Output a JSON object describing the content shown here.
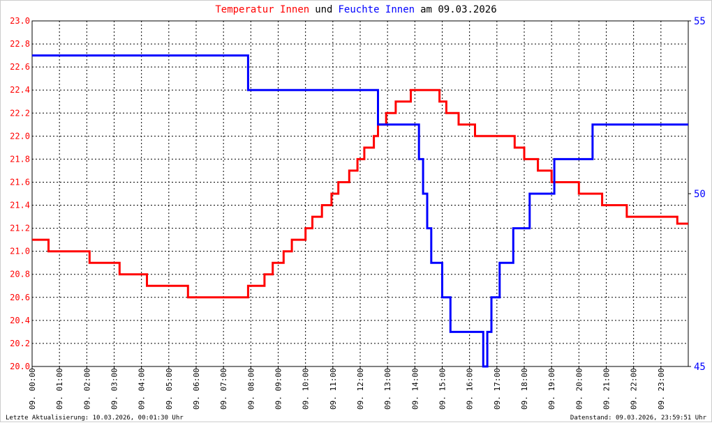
{
  "chart_data": {
    "type": "line",
    "title": [
      "Temperatur Innen",
      "und",
      "Feuchte Innen",
      "am 09.03.2026"
    ],
    "footer_left": "Letzte Aktualisierung: 10.03.2026, 00:01:30 Uhr",
    "footer_right": "Datenstand: 09.03.2026, 23:59:51 Uhr",
    "grid": true,
    "xlim": [
      0,
      24
    ],
    "xticks": [
      {
        "value": 0,
        "label": "09. 00:00"
      },
      {
        "value": 1,
        "label": "09. 01:00"
      },
      {
        "value": 2,
        "label": "09. 02:00"
      },
      {
        "value": 3,
        "label": "09. 03:00"
      },
      {
        "value": 4,
        "label": "09. 04:00"
      },
      {
        "value": 5,
        "label": "09. 05:00"
      },
      {
        "value": 6,
        "label": "09. 06:00"
      },
      {
        "value": 7,
        "label": "09. 07:00"
      },
      {
        "value": 8,
        "label": "09. 08:00"
      },
      {
        "value": 9,
        "label": "09. 09:00"
      },
      {
        "value": 10,
        "label": "09. 10:00"
      },
      {
        "value": 11,
        "label": "09. 11:00"
      },
      {
        "value": 12,
        "label": "09. 12:00"
      },
      {
        "value": 13,
        "label": "09. 13:00"
      },
      {
        "value": 14,
        "label": "09. 14:00"
      },
      {
        "value": 15,
        "label": "09. 15:00"
      },
      {
        "value": 16,
        "label": "09. 16:00"
      },
      {
        "value": 17,
        "label": "09. 17:00"
      },
      {
        "value": 18,
        "label": "09. 18:00"
      },
      {
        "value": 19,
        "label": "09. 19:00"
      },
      {
        "value": 20,
        "label": "09. 20:00"
      },
      {
        "value": 21,
        "label": "09. 21:00"
      },
      {
        "value": 22,
        "label": "09. 22:00"
      },
      {
        "value": 23,
        "label": "09. 23:00"
      }
    ],
    "ylim": [
      20,
      23
    ],
    "yticks": [
      {
        "value": 20,
        "label": "20.0"
      },
      20.2,
      20.4,
      20.6,
      20.8,
      {
        "value": 21,
        "label": "21.0"
      },
      21.2,
      21.4,
      21.6,
      21.8,
      {
        "value": 22,
        "label": "22.0"
      },
      22.2,
      22.4,
      22.6,
      22.8,
      {
        "value": 23,
        "label": "23.0"
      }
    ],
    "y2lim": [
      45,
      55
    ],
    "y2ticks": [
      45,
      50,
      55
    ],
    "series": [
      {
        "name": "Temperatur Innen",
        "color": "#ff0000",
        "x": [
          0,
          0.6,
          0.6,
          2.1,
          2.1,
          3.2,
          3.2,
          4.2,
          4.2,
          5.7,
          5.7,
          7.9,
          7.9,
          8.5,
          8.5,
          8.8,
          8.8,
          9.2,
          9.2,
          9.5,
          9.5,
          10,
          10,
          10.25,
          10.25,
          10.6,
          10.6,
          10.95,
          10.95,
          11.2,
          11.2,
          11.6,
          11.6,
          11.9,
          11.9,
          12.15,
          12.15,
          12.5,
          12.5,
          12.65,
          12.65,
          12.95,
          12.95,
          13.3,
          13.3,
          13.85,
          13.85,
          14.9,
          14.9,
          15.15,
          15.15,
          15.6,
          15.6,
          16.2,
          16.2,
          17.65,
          17.65,
          18,
          18,
          18.5,
          18.5,
          19,
          19,
          20,
          20,
          20.85,
          20.85,
          21.75,
          21.75,
          23.6,
          23.6,
          24
        ],
        "values": [
          21.1,
          21.1,
          21.0,
          21.0,
          20.9,
          20.9,
          20.8,
          20.8,
          20.7,
          20.7,
          20.6,
          20.6,
          20.7,
          20.7,
          20.8,
          20.8,
          20.9,
          20.9,
          21.0,
          21.0,
          21.1,
          21.1,
          21.2,
          21.2,
          21.3,
          21.3,
          21.4,
          21.4,
          21.5,
          21.5,
          21.6,
          21.6,
          21.7,
          21.7,
          21.8,
          21.8,
          21.9,
          21.9,
          22.0,
          22.0,
          22.1,
          22.1,
          22.2,
          22.2,
          22.3,
          22.3,
          22.4,
          22.4,
          22.3,
          22.3,
          22.2,
          22.2,
          22.1,
          22.1,
          22.0,
          22.0,
          21.9,
          21.9,
          21.8,
          21.8,
          21.7,
          21.7,
          21.6,
          21.6,
          21.5,
          21.5,
          21.4,
          21.4,
          21.3,
          21.3,
          21.24,
          21.24
        ]
      },
      {
        "name": "Feuchte Innen",
        "color": "#0000ff",
        "axis": "y2",
        "x": [
          0,
          7.9,
          7.9,
          12.65,
          12.65,
          14.15,
          14.15,
          14.3,
          14.3,
          14.45,
          14.45,
          14.6,
          14.6,
          15,
          15,
          15.3,
          15.3,
          16.5,
          16.5,
          16.65,
          16.65,
          16.8,
          16.8,
          17.1,
          17.1,
          17.6,
          17.6,
          18.2,
          18.2,
          19.1,
          19.1,
          20.5,
          20.5,
          24
        ],
        "values": [
          54,
          54,
          53,
          53,
          52,
          52,
          51,
          51,
          50,
          50,
          49,
          49,
          48,
          48,
          47,
          47,
          46,
          46,
          45,
          45,
          46,
          46,
          47,
          47,
          48,
          48,
          49,
          49,
          50,
          50,
          51,
          51,
          52,
          52
        ]
      }
    ]
  }
}
